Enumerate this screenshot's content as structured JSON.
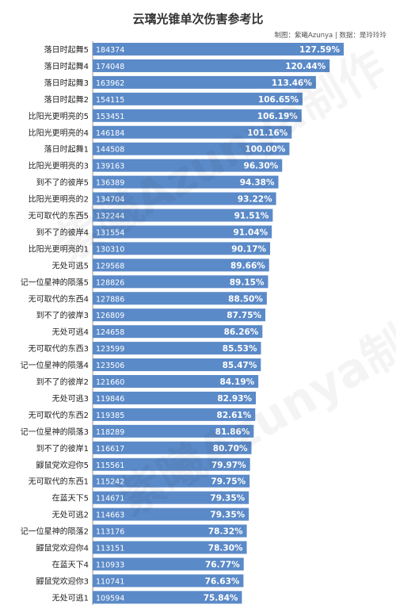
{
  "chart_data": {
    "type": "bar",
    "orientation": "horizontal",
    "title": "云璃光锥单次伤害参考比",
    "credit": "制图：紫曦Azunya | 数据：是玲玲玲",
    "bar_color": "#5b8ac8",
    "categories": [
      "落日时起舞5",
      "落日时起舞4",
      "落日时起舞3",
      "落日时起舞2",
      "比阳光更明亮的5",
      "比阳光更明亮的4",
      "落日时起舞1",
      "比阳光更明亮的3",
      "到不了的彼岸5",
      "比阳光更明亮的2",
      "无可取代的东西5",
      "到不了的彼岸4",
      "比阳光更明亮的1",
      "无处可逃5",
      "记一位星神的陨落5",
      "无可取代的东西4",
      "到不了的彼岸3",
      "无处可逃4",
      "无可取代的东西3",
      "记一位星神的陨落4",
      "到不了的彼岸2",
      "无处可逃3",
      "无可取代的东西2",
      "记一位星神的陨落3",
      "到不了的彼岸1",
      "鼹鼠党欢迎你5",
      "无可取代的东西1",
      "在蓝天下5",
      "无处可逃2",
      "记一位星神的陨落2",
      "鼹鼠党欢迎你4",
      "在蓝天下4",
      "鼹鼠党欢迎你3",
      "无处可逃1"
    ],
    "values": [
      184374,
      174048,
      163962,
      154115,
      153451,
      146184,
      144508,
      139163,
      136389,
      134704,
      132244,
      131554,
      130310,
      129568,
      128826,
      127886,
      126809,
      124658,
      123599,
      123506,
      121660,
      119846,
      119385,
      118289,
      116617,
      115561,
      115242,
      114671,
      114663,
      113176,
      113151,
      110933,
      110741,
      109594
    ],
    "percent_labels": [
      "127.59%",
      "120.44%",
      "113.46%",
      "106.65%",
      "106.19%",
      "101.16%",
      "100.00%",
      "96.30%",
      "94.38%",
      "93.22%",
      "91.51%",
      "91.04%",
      "90.17%",
      "89.66%",
      "89.15%",
      "88.50%",
      "87.75%",
      "86.26%",
      "85.53%",
      "85.47%",
      "84.19%",
      "82.93%",
      "82.61%",
      "81.86%",
      "80.70%",
      "79.97%",
      "79.75%",
      "79.35%",
      "79.35%",
      "78.32%",
      "78.30%",
      "76.77%",
      "76.63%",
      "75.84%"
    ],
    "value_labels": [
      "184374",
      "174048",
      "163962",
      "154115",
      "153451",
      "146184",
      "144508",
      "139163",
      "136389",
      "134704",
      "132244",
      "131554",
      "130310",
      "129568",
      "128826",
      "127886",
      "126809",
      "124658",
      "123599",
      "123506",
      "121660",
      "119846",
      "119385",
      "118289",
      "116617",
      "115561",
      "115242",
      "114671",
      "114663",
      "113176",
      "113151",
      "110933",
      "110741",
      "109594"
    ],
    "grid": false,
    "legend": "none"
  },
  "watermark_text": "紫曦Azunya制作"
}
